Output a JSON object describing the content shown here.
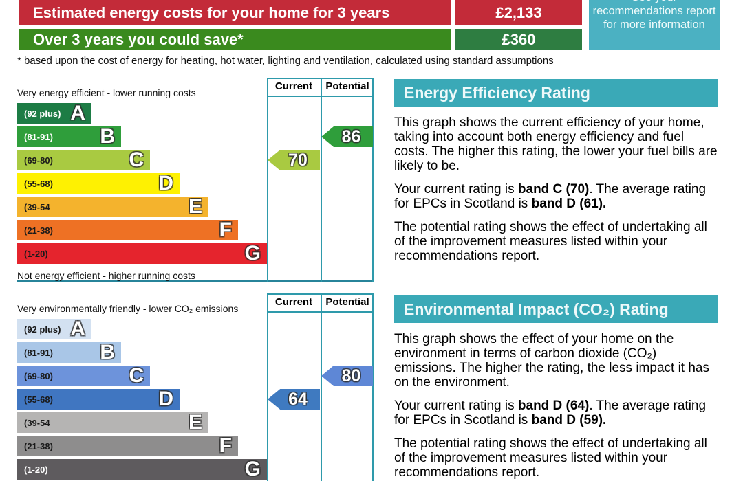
{
  "summary": {
    "rows": [
      {
        "label": "Estimated energy costs for your home for 3 years",
        "value": "£2,133",
        "label_bg": "#c32b39",
        "value_bg": "#c32b39"
      },
      {
        "label": "Over 3 years you could save*",
        "value": "£360",
        "label_bg": "#3a8a1e",
        "value_bg": "#2e7d41"
      }
    ],
    "info_box": {
      "text": "See your recommendations report for more information",
      "bg": "#4bb1c2"
    }
  },
  "footnote": "* based upon the cost of energy for heating, hot water, lighting and ventilation, calculated using standard assumptions",
  "energy_chart": {
    "top_label": "Very energy efficient - lower running costs",
    "bottom_label": "Not energy efficient - higher running costs",
    "col_current": "Current",
    "col_potential": "Potential",
    "bands": [
      {
        "range": "(92 plus)",
        "letter": "A",
        "color": "#1d7c45",
        "text": "#ffffff"
      },
      {
        "range": "(81-91)",
        "letter": "B",
        "color": "#2f9e3b",
        "text": "#ffffff"
      },
      {
        "range": "(69-80)",
        "letter": "C",
        "color": "#a9ca41",
        "text": "#1a1a1a"
      },
      {
        "range": "(55-68)",
        "letter": "D",
        "color": "#fef102",
        "text": "#1a1a1a"
      },
      {
        "range": "(39-54",
        "letter": "E",
        "color": "#f4b32d",
        "text": "#1a1a1a"
      },
      {
        "range": "(21-38)",
        "letter": "F",
        "color": "#ee7124",
        "text": "#1a1a1a"
      },
      {
        "range": "(1-20)",
        "letter": "G",
        "color": "#e5242d",
        "text": "#1a1a1a"
      }
    ],
    "current": {
      "value": "70",
      "band_index": 2,
      "color": "#a9ca41"
    },
    "potential": {
      "value": "86",
      "band_index": 1,
      "color": "#2f9e3b"
    }
  },
  "environmental_chart": {
    "top_label": "Very environmentally friendly - lower CO₂ emissions",
    "col_current": "Current",
    "col_potential": "Potential",
    "bands": [
      {
        "range": "(92 plus)",
        "letter": "A",
        "color": "#d3e1f1",
        "text": "#1a1a1a"
      },
      {
        "range": "(81-91)",
        "letter": "B",
        "color": "#a9c6e7",
        "text": "#1a1a1a"
      },
      {
        "range": "(69-80)",
        "letter": "C",
        "color": "#6d93db",
        "text": "#1a1a1a"
      },
      {
        "range": "(55-68)",
        "letter": "D",
        "color": "#4076c1",
        "text": "#1a1a1a"
      },
      {
        "range": "(39-54",
        "letter": "E",
        "color": "#b5b4b3",
        "text": "#1a1a1a"
      },
      {
        "range": "(21-38)",
        "letter": "F",
        "color": "#8e8d8d",
        "text": "#1a1a1a"
      },
      {
        "range": "(1-20)",
        "letter": "G",
        "color": "#5e5b5e",
        "text": "#ffffff"
      }
    ],
    "current": {
      "value": "64",
      "band_index": 3,
      "color": "#3f7ac0"
    },
    "potential": {
      "value": "80",
      "band_index": 2,
      "color": "#5e87d6"
    }
  },
  "sections": [
    {
      "title": "Energy Efficiency Rating",
      "intro": "This graph shows the current efficiency of your home, taking into account both energy efficiency and fuel costs. The higher this rating, the lower your fuel bills are likely to be.",
      "rating": {
        "pre": "Your current rating is ",
        "current_bold": "band C (70)",
        "mid": ". The average rating for EPCs in Scotland is ",
        "average_bold": "band D (61)."
      },
      "potential_text": "The potential rating shows the effect of undertaking all of the improvement measures listed within your recommendations report."
    },
    {
      "title": "Environmental Impact (CO₂) Rating",
      "intro": "This graph shows the effect of your home on the environment in terms of carbon dioxide (CO₂) emissions. The higher the rating, the less impact it has on the environment.",
      "rating": {
        "pre": "Your current rating is ",
        "current_bold": "band D (64)",
        "mid": ". The average rating for EPCs in Scotland is ",
        "average_bold": "band D (59)."
      },
      "potential_text": "The potential rating shows the effect of undertaking all of the improvement measures listed within your recommendations report."
    }
  ],
  "colors": {
    "header_bg": "#3aa9b7",
    "table_border": "#2e9aab"
  }
}
